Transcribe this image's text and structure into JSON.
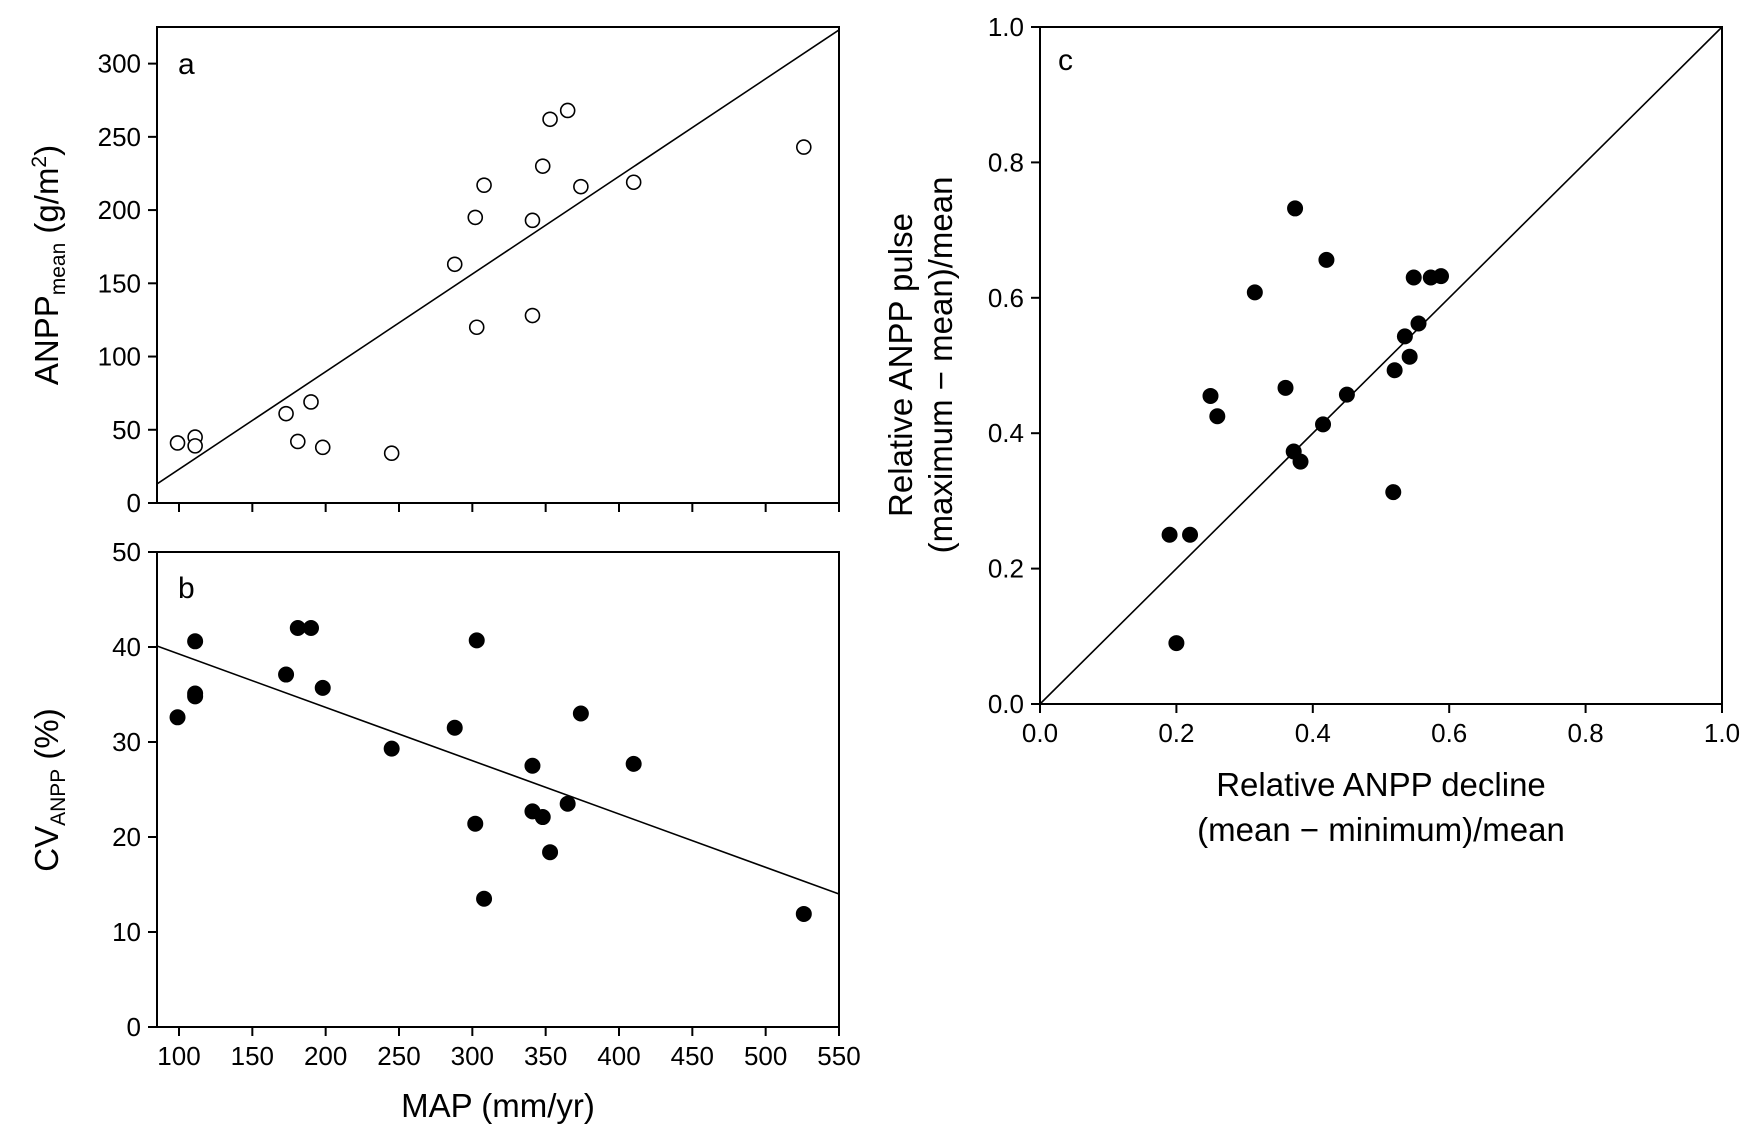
{
  "chart_data": [
    {
      "panel": "a",
      "type": "scatter",
      "xlim": [
        85,
        550
      ],
      "ylim": [
        0,
        325
      ],
      "xticks": [
        100,
        150,
        200,
        250,
        300,
        350,
        400,
        450,
        500,
        550
      ],
      "yticks": [
        0,
        50,
        100,
        150,
        200,
        250,
        300
      ],
      "ylabel_main": "ANPP",
      "ylabel_sub": "mean",
      "ylabel_unit_pre": " (g/m",
      "ylabel_unit_sup": "2",
      "ylabel_unit_post": ")",
      "marker": "open-circle",
      "points": [
        {
          "x": 99,
          "y": 41
        },
        {
          "x": 111,
          "y": 45
        },
        {
          "x": 111,
          "y": 39
        },
        {
          "x": 173,
          "y": 61
        },
        {
          "x": 181,
          "y": 42
        },
        {
          "x": 190,
          "y": 69
        },
        {
          "x": 198,
          "y": 38
        },
        {
          "x": 245,
          "y": 34
        },
        {
          "x": 288,
          "y": 163
        },
        {
          "x": 302,
          "y": 195
        },
        {
          "x": 303,
          "y": 120
        },
        {
          "x": 308,
          "y": 217
        },
        {
          "x": 341,
          "y": 193
        },
        {
          "x": 341,
          "y": 128
        },
        {
          "x": 348,
          "y": 230
        },
        {
          "x": 353,
          "y": 262
        },
        {
          "x": 365,
          "y": 268
        },
        {
          "x": 374,
          "y": 216
        },
        {
          "x": 410,
          "y": 219
        },
        {
          "x": 526,
          "y": 243
        }
      ],
      "fit_line": {
        "x": [
          85,
          550
        ],
        "y": [
          13,
          323
        ]
      }
    },
    {
      "panel": "b",
      "type": "scatter",
      "xlim": [
        85,
        550
      ],
      "ylim": [
        0,
        50
      ],
      "xticks": [
        100,
        150,
        200,
        250,
        300,
        350,
        400,
        450,
        500,
        550
      ],
      "yticks": [
        0,
        10,
        20,
        30,
        40,
        50
      ],
      "xlabel": "MAP (mm/yr)",
      "ylabel_main": "CV",
      "ylabel_sub": "ANPP",
      "ylabel_unit": " (%)",
      "marker": "filled-circle",
      "points": [
        {
          "x": 99,
          "y": 32.6
        },
        {
          "x": 111,
          "y": 40.6
        },
        {
          "x": 111,
          "y": 35.1
        },
        {
          "x": 111,
          "y": 34.8
        },
        {
          "x": 173,
          "y": 37.1
        },
        {
          "x": 181,
          "y": 42.0
        },
        {
          "x": 190,
          "y": 42.0
        },
        {
          "x": 198,
          "y": 35.7
        },
        {
          "x": 245,
          "y": 29.3
        },
        {
          "x": 288,
          "y": 31.5
        },
        {
          "x": 302,
          "y": 21.4
        },
        {
          "x": 303,
          "y": 40.7
        },
        {
          "x": 308,
          "y": 13.5
        },
        {
          "x": 341,
          "y": 27.5
        },
        {
          "x": 341,
          "y": 22.7
        },
        {
          "x": 348,
          "y": 22.1
        },
        {
          "x": 353,
          "y": 18.4
        },
        {
          "x": 365,
          "y": 23.5
        },
        {
          "x": 374,
          "y": 33.0
        },
        {
          "x": 410,
          "y": 27.7
        },
        {
          "x": 526,
          "y": 11.9
        }
      ],
      "fit_line": {
        "x": [
          85,
          550
        ],
        "y": [
          40.1,
          14.0
        ]
      }
    },
    {
      "panel": "c",
      "type": "scatter",
      "xlim": [
        0,
        1
      ],
      "ylim": [
        0,
        1
      ],
      "xticks": [
        0.0,
        0.2,
        0.4,
        0.6,
        0.8,
        1.0
      ],
      "yticks": [
        0.0,
        0.2,
        0.4,
        0.6,
        0.8,
        1.0
      ],
      "xlabel_line1": "Relative ANPP decline",
      "xlabel_line2": "(mean − minimum)/mean",
      "ylabel_line1": "Relative ANPP pulse",
      "ylabel_line2": "(maximum − mean)/mean",
      "marker": "filled-circle",
      "points": [
        {
          "x": 0.19,
          "y": 0.25
        },
        {
          "x": 0.2,
          "y": 0.09
        },
        {
          "x": 0.22,
          "y": 0.25
        },
        {
          "x": 0.25,
          "y": 0.455
        },
        {
          "x": 0.26,
          "y": 0.425
        },
        {
          "x": 0.315,
          "y": 0.608
        },
        {
          "x": 0.36,
          "y": 0.467
        },
        {
          "x": 0.372,
          "y": 0.373
        },
        {
          "x": 0.374,
          "y": 0.732
        },
        {
          "x": 0.382,
          "y": 0.358
        },
        {
          "x": 0.415,
          "y": 0.413
        },
        {
          "x": 0.42,
          "y": 0.656
        },
        {
          "x": 0.45,
          "y": 0.457
        },
        {
          "x": 0.518,
          "y": 0.313
        },
        {
          "x": 0.52,
          "y": 0.493
        },
        {
          "x": 0.535,
          "y": 0.543
        },
        {
          "x": 0.542,
          "y": 0.513
        },
        {
          "x": 0.548,
          "y": 0.63
        },
        {
          "x": 0.555,
          "y": 0.562
        },
        {
          "x": 0.573,
          "y": 0.63
        },
        {
          "x": 0.588,
          "y": 0.632
        }
      ],
      "fit_line": {
        "x": [
          0,
          1
        ],
        "y": [
          0,
          1
        ]
      }
    }
  ]
}
